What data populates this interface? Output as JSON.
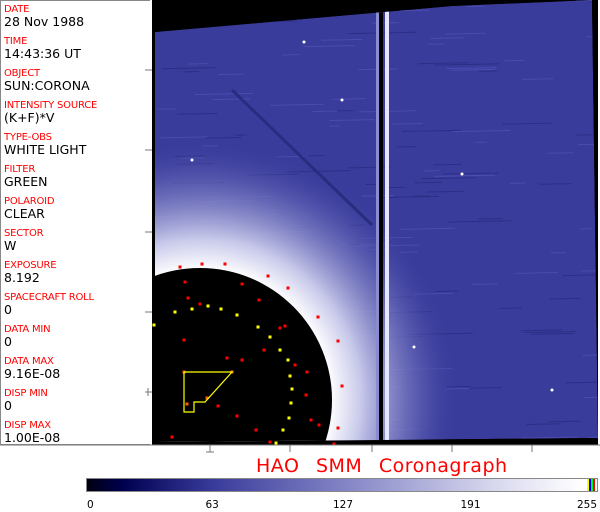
{
  "header_fields": [
    {
      "label": "DATE",
      "value": "28 Nov 1988"
    },
    {
      "label": "TIME",
      "value": "14:43:36 UT"
    },
    {
      "label": "OBJECT",
      "value": "SUN:CORONA"
    },
    {
      "label": "INTENSITY SOURCE",
      "value": "(K+F)*V"
    },
    {
      "label": "TYPE-OBS",
      "value": "WHITE LIGHT"
    },
    {
      "label": "FILTER",
      "value": "GREEN"
    },
    {
      "label": "POLAROID",
      "value": "CLEAR"
    },
    {
      "label": "SECTOR",
      "value": "W"
    },
    {
      "label": "EXPOSURE",
      "value": "8.192"
    },
    {
      "label": "SPACECRAFT ROLL",
      "value": "0"
    },
    {
      "label": "DATA MIN",
      "value": "0"
    },
    {
      "label": "DATA MAX",
      "value": "9.16E-08"
    },
    {
      "label": "DISP MIN",
      "value": "0"
    },
    {
      "label": "DISP MAX",
      "value": "1.00E-08"
    }
  ],
  "title": "HAO  SMM Coronagraph",
  "colorbar": {
    "ticks": [
      "0",
      "63",
      "127",
      "191",
      "255"
    ],
    "colors": {
      "dark": "#000010",
      "mid": "#3a3c9c",
      "light": "#ffffff"
    },
    "end_markers": [
      "#ffff00",
      "#0000ff",
      "#00ff00",
      "#ff0000"
    ]
  },
  "colors": {
    "label": "#ff0000",
    "image_base": "#3a3c9c",
    "marker_red": "#ff0000",
    "marker_yellow": "#ffff00"
  }
}
